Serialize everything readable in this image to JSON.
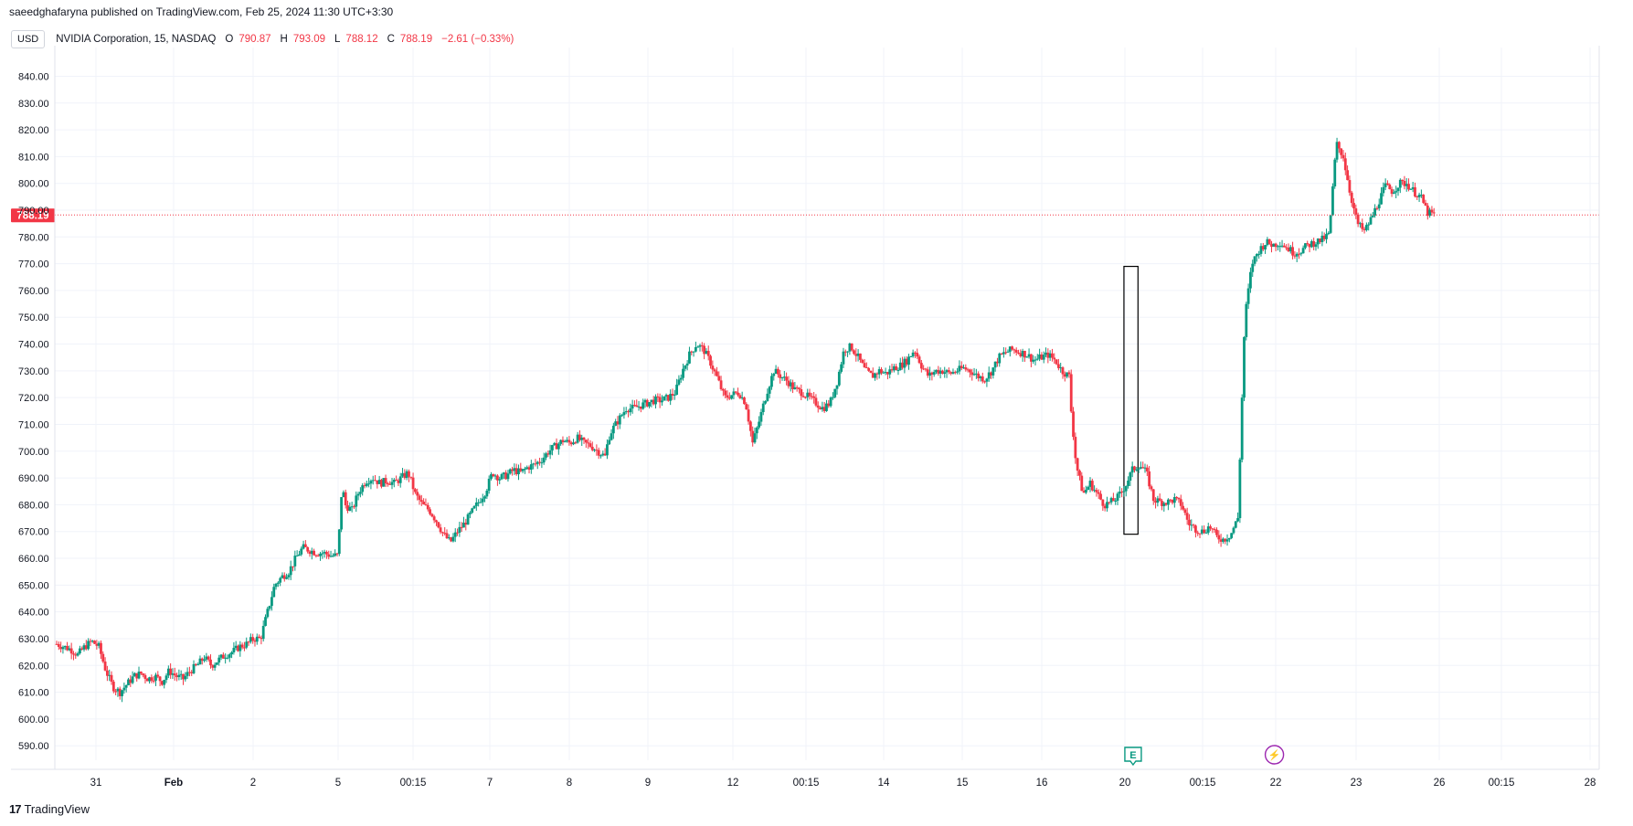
{
  "header": {
    "publisher_line": "saeedghafaryna published on TradingView.com, Feb 25, 2024 11:30 UTC+3:30"
  },
  "legend": {
    "currency_button": "USD",
    "symbol": "NVIDIA Corporation, 15, NASDAQ",
    "open_label": "O",
    "open": "790.87",
    "high_label": "H",
    "high": "793.09",
    "low_label": "L",
    "low": "788.12",
    "close_label": "C",
    "close": "788.19",
    "change": "−2.61 (−0.33%)"
  },
  "footer": {
    "brand_glyph": "17",
    "brand": "TradingView"
  },
  "colors": {
    "up": "#089981",
    "down": "#f23645",
    "grid": "#f0f3fa",
    "text": "#131722",
    "price_tag": "#f23645",
    "event_earnings": "#089981",
    "event_dividend": "#9c27b0"
  },
  "chart_data": {
    "type": "candlestick",
    "symbol": "NVDA",
    "interval": "15",
    "y_ticks": [
      "590.00",
      "600.00",
      "610.00",
      "620.00",
      "630.00",
      "640.00",
      "650.00",
      "660.00",
      "670.00",
      "680.00",
      "690.00",
      "700.00",
      "710.00",
      "720.00",
      "730.00",
      "740.00",
      "750.00",
      "760.00",
      "770.00",
      "780.00",
      "790.00",
      "800.00",
      "810.00",
      "820.00",
      "830.00",
      "840.00"
    ],
    "ylim": [
      587,
      848
    ],
    "x_ticks": [
      "31",
      "Feb",
      "2",
      "5",
      "00:15",
      "7",
      "8",
      "9",
      "12",
      "00:15",
      "14",
      "15",
      "16",
      "20",
      "00:15",
      "22",
      "23",
      "26",
      "00:15",
      "28"
    ],
    "last_price_label": "788.19",
    "last_price": 788.19,
    "rectangle": {
      "x_from": 151.8,
      "x_to": 153.8,
      "y_from": 669,
      "y_to": 769
    },
    "events": [
      {
        "label": "E",
        "x": 153.1,
        "kind": "earnings"
      },
      {
        "label": "⚡",
        "x": 173.2,
        "kind": "dividend"
      }
    ],
    "x_range": [
      0,
      196
    ],
    "price_path": [
      [
        0,
        628
      ],
      [
        2,
        626
      ],
      [
        3,
        624
      ],
      [
        4,
        627
      ],
      [
        5,
        629
      ],
      [
        6,
        627
      ],
      [
        7,
        618
      ],
      [
        8,
        612
      ],
      [
        9,
        610
      ],
      [
        10,
        613
      ],
      [
        11,
        616
      ],
      [
        12,
        617
      ],
      [
        13,
        615
      ],
      [
        14,
        616
      ],
      [
        15,
        614
      ],
      [
        16,
        618
      ],
      [
        17,
        616
      ],
      [
        18,
        615
      ],
      [
        19,
        618
      ],
      [
        20,
        620
      ],
      [
        21,
        623
      ],
      [
        22,
        620
      ],
      [
        23,
        622
      ],
      [
        24,
        624
      ],
      [
        25,
        625
      ],
      [
        26,
        627
      ],
      [
        27,
        628
      ],
      [
        28,
        630
      ],
      [
        29,
        630
      ],
      [
        30,
        640
      ],
      [
        31,
        650
      ],
      [
        32,
        653
      ],
      [
        33,
        655
      ],
      [
        34,
        660
      ],
      [
        35,
        664
      ],
      [
        36,
        663
      ],
      [
        37,
        662
      ],
      [
        38,
        662
      ],
      [
        39,
        661
      ],
      [
        40,
        661
      ],
      [
        40.6,
        688
      ],
      [
        41,
        680
      ],
      [
        42,
        678
      ],
      [
        43,
        685
      ],
      [
        44,
        689
      ],
      [
        45,
        690
      ],
      [
        46,
        688
      ],
      [
        47,
        689
      ],
      [
        48,
        688
      ],
      [
        49,
        690
      ],
      [
        50,
        692
      ],
      [
        51,
        684
      ],
      [
        52,
        680
      ],
      [
        53,
        678
      ],
      [
        54,
        674
      ],
      [
        55,
        669
      ],
      [
        56,
        666
      ],
      [
        57,
        670
      ],
      [
        58,
        673
      ],
      [
        59,
        677
      ],
      [
        60,
        681
      ],
      [
        61,
        685
      ],
      [
        62,
        692
      ],
      [
        63,
        690
      ],
      [
        64,
        691
      ],
      [
        65,
        693
      ],
      [
        66,
        692
      ],
      [
        67,
        694
      ],
      [
        68,
        695
      ],
      [
        69,
        697
      ],
      [
        70,
        700
      ],
      [
        71,
        702
      ],
      [
        72,
        704
      ],
      [
        73,
        703
      ],
      [
        74,
        705
      ],
      [
        75,
        703
      ],
      [
        76,
        702
      ],
      [
        77,
        700
      ],
      [
        78,
        698
      ],
      [
        78.5,
        705
      ],
      [
        79,
        708
      ],
      [
        80,
        712
      ],
      [
        81,
        716
      ],
      [
        82,
        716
      ],
      [
        83,
        717
      ],
      [
        84,
        718
      ],
      [
        85,
        719
      ],
      [
        86,
        719
      ],
      [
        87,
        720
      ],
      [
        88,
        722
      ],
      [
        89,
        730
      ],
      [
        90,
        736
      ],
      [
        91,
        740
      ],
      [
        92,
        738
      ],
      [
        93,
        733
      ],
      [
        94,
        727
      ],
      [
        95,
        720
      ],
      [
        96,
        721
      ],
      [
        97,
        722
      ],
      [
        98,
        718
      ],
      [
        99,
        703
      ],
      [
        100,
        712
      ],
      [
        101,
        722
      ],
      [
        102,
        730
      ],
      [
        103,
        728
      ],
      [
        104,
        726
      ],
      [
        105,
        723
      ],
      [
        106,
        722
      ],
      [
        107,
        720
      ],
      [
        108,
        718
      ],
      [
        109,
        716
      ],
      [
        110,
        718
      ],
      [
        111,
        726
      ],
      [
        112,
        738
      ],
      [
        113,
        739
      ],
      [
        114,
        735
      ],
      [
        115,
        730
      ],
      [
        116,
        728
      ],
      [
        117,
        730
      ],
      [
        118,
        729
      ],
      [
        119,
        731
      ],
      [
        120,
        732
      ],
      [
        121,
        734
      ],
      [
        122,
        738
      ],
      [
        123,
        732
      ],
      [
        124,
        728
      ],
      [
        125,
        730
      ],
      [
        126,
        730
      ],
      [
        127,
        729
      ],
      [
        128,
        730
      ],
      [
        129,
        731
      ],
      [
        130,
        730
      ],
      [
        131,
        728
      ],
      [
        132,
        727
      ],
      [
        133,
        730
      ],
      [
        134,
        735
      ],
      [
        135,
        737
      ],
      [
        136,
        738
      ],
      [
        137,
        737
      ],
      [
        138,
        736
      ],
      [
        139,
        734
      ],
      [
        140,
        735
      ],
      [
        141,
        736
      ],
      [
        142,
        734
      ],
      [
        143,
        730
      ],
      [
        144,
        728
      ],
      [
        144.2,
        718
      ],
      [
        145,
        695
      ],
      [
        146,
        684
      ],
      [
        147,
        688
      ],
      [
        148,
        684
      ],
      [
        149,
        680
      ],
      [
        150,
        681
      ],
      [
        151,
        683
      ],
      [
        152,
        687
      ],
      [
        153,
        693
      ],
      [
        154,
        695
      ],
      [
        155,
        692
      ],
      [
        156,
        682
      ],
      [
        157,
        681
      ],
      [
        158,
        681
      ],
      [
        159,
        682
      ],
      [
        160,
        680
      ],
      [
        161,
        673
      ],
      [
        162,
        671
      ],
      [
        163,
        670
      ],
      [
        164,
        672
      ],
      [
        165,
        668
      ],
      [
        166,
        667
      ],
      [
        167,
        669
      ],
      [
        168,
        675
      ],
      [
        169,
        750
      ],
      [
        170,
        770
      ],
      [
        171,
        775
      ],
      [
        172,
        778
      ],
      [
        173,
        777
      ],
      [
        174,
        778
      ],
      [
        175,
        776
      ],
      [
        176,
        774
      ],
      [
        177,
        775
      ],
      [
        178,
        777
      ],
      [
        179,
        778
      ],
      [
        180,
        779
      ],
      [
        181,
        781
      ],
      [
        182,
        815
      ],
      [
        183,
        810
      ],
      [
        184,
        796
      ],
      [
        185,
        785
      ],
      [
        186,
        782
      ],
      [
        187,
        787
      ],
      [
        188,
        793
      ],
      [
        189,
        799
      ],
      [
        190,
        797
      ],
      [
        191,
        800
      ],
      [
        192,
        800
      ],
      [
        193,
        797
      ],
      [
        194,
        795
      ],
      [
        195,
        789
      ],
      [
        196,
        788.19
      ]
    ]
  }
}
